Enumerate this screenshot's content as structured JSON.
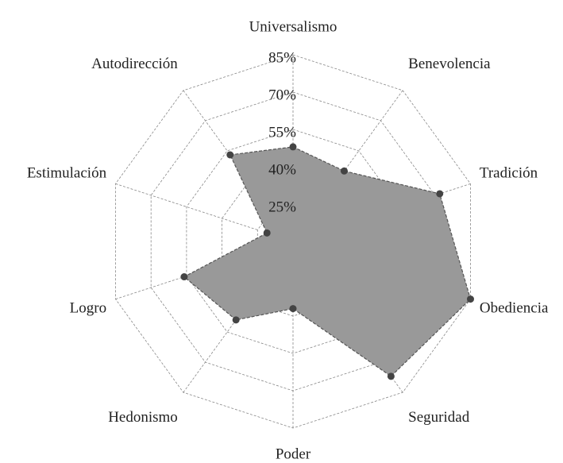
{
  "chart_data": {
    "type": "radar",
    "categories": [
      "Universalismo",
      "Benevolencia",
      "Tradición",
      "Obediencia",
      "Seguridad",
      "Poder",
      "Hedonismo",
      "Logro",
      "Estimulación",
      "Autodirección"
    ],
    "values": [
      48,
      45,
      72,
      85,
      77,
      37,
      49,
      56,
      21,
      53
    ],
    "color": "#999999",
    "ylim": [
      10,
      85
    ],
    "yticks": [
      {
        "value": 25,
        "label": "25%"
      },
      {
        "value": 40,
        "label": "40%"
      },
      {
        "value": 55,
        "label": "55%"
      },
      {
        "value": 70,
        "label": "70%"
      },
      {
        "value": 85,
        "label": "85%"
      }
    ],
    "grid": true
  }
}
